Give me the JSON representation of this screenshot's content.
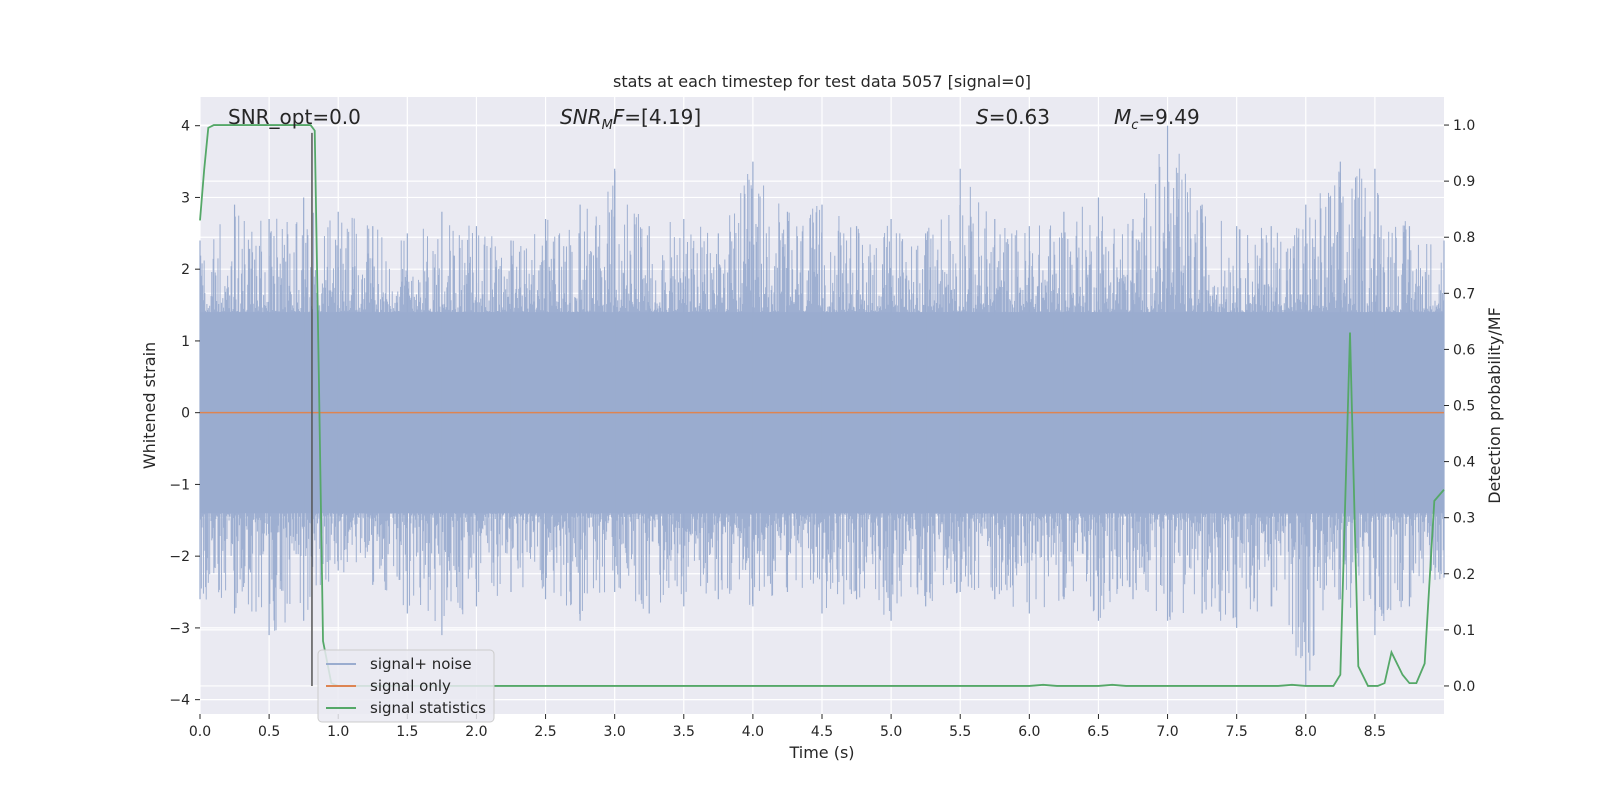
{
  "chart_data": {
    "type": "line",
    "title": "stats at each timestep for test data 5057 [signal=0]",
    "xlabel": "Time (s)",
    "ylabel_left": "Whitened strain",
    "ylabel_right": "Detection probability/MF",
    "xlim": [
      0.0,
      9.0
    ],
    "ylim_left": [
      -4.2,
      4.4
    ],
    "ylim_right": [
      -0.05,
      1.05
    ],
    "xticks": [
      "0.0",
      "0.5",
      "1.0",
      "1.5",
      "2.0",
      "2.5",
      "3.0",
      "3.5",
      "4.0",
      "4.5",
      "5.0",
      "5.5",
      "6.0",
      "6.5",
      "7.0",
      "7.5",
      "8.0",
      "8.5"
    ],
    "xtick_values": [
      0.0,
      0.5,
      1.0,
      1.5,
      2.0,
      2.5,
      3.0,
      3.5,
      4.0,
      4.5,
      5.0,
      5.5,
      6.0,
      6.5,
      7.0,
      7.5,
      8.0,
      8.5
    ],
    "yticks_left": [
      "4",
      "3",
      "2",
      "1",
      "0",
      "−1",
      "−2",
      "−3",
      "−4"
    ],
    "ytick_values_left": [
      4,
      3,
      2,
      1,
      0,
      -1,
      -2,
      -3,
      -4
    ],
    "yticks_right": [
      "1.0",
      "0.9",
      "0.8",
      "0.7",
      "0.6",
      "0.5",
      "0.4",
      "0.3",
      "0.2",
      "0.1",
      "0.0"
    ],
    "ytick_values_right": [
      1.0,
      0.9,
      0.8,
      0.7,
      0.6,
      0.5,
      0.4,
      0.3,
      0.2,
      0.1,
      0.0
    ],
    "grid": true,
    "legend_placement": "lower-left",
    "annotations": {
      "snr_opt": "SNR_opt=0.0",
      "snr_mf_base": "SNR",
      "snr_mf_sub": "M",
      "snr_mf_rest": "F=[4.19]",
      "s_var": "S",
      "s_val": "=0.63",
      "mc_var": "M",
      "mc_sub": "c",
      "mc_val": "=9.49"
    },
    "vline_x": 0.81,
    "series": [
      {
        "name": "signal+ noise",
        "color": "#9aaccf",
        "axis": "left",
        "envelope_x": [
          0.0,
          0.25,
          0.5,
          0.75,
          1.0,
          1.25,
          1.5,
          1.75,
          2.0,
          2.25,
          2.5,
          2.75,
          3.0,
          3.25,
          3.5,
          3.75,
          4.0,
          4.25,
          4.5,
          4.75,
          5.0,
          5.25,
          5.5,
          5.75,
          6.0,
          6.25,
          6.5,
          6.75,
          7.0,
          7.25,
          7.5,
          7.75,
          8.0,
          8.25,
          8.5,
          8.75,
          9.0
        ],
        "envelope_upper": [
          2.4,
          2.9,
          2.7,
          3.0,
          2.8,
          2.6,
          2.5,
          2.8,
          2.6,
          2.4,
          2.7,
          2.9,
          3.4,
          2.6,
          2.7,
          2.5,
          3.5,
          2.8,
          2.9,
          2.6,
          2.7,
          2.5,
          3.4,
          2.7,
          2.6,
          2.8,
          3.0,
          2.7,
          4.0,
          2.9,
          2.6,
          2.6,
          2.9,
          3.5,
          3.4,
          2.6,
          2.4
        ],
        "envelope_lower": [
          -2.6,
          -2.8,
          -3.1,
          -2.9,
          -2.2,
          -2.4,
          -2.8,
          -3.1,
          -2.7,
          -2.5,
          -2.6,
          -2.9,
          -2.5,
          -2.8,
          -2.7,
          -2.6,
          -2.7,
          -2.5,
          -2.8,
          -2.6,
          -2.9,
          -2.7,
          -2.5,
          -2.6,
          -2.8,
          -2.6,
          -2.9,
          -2.6,
          -2.9,
          -2.8,
          -3.0,
          -2.7,
          -3.8,
          -2.6,
          -3.1,
          -2.7,
          -2.3
        ],
        "core_band": [
          -1.4,
          1.4
        ]
      },
      {
        "name": "signal only",
        "color": "#dd8452",
        "axis": "left",
        "x": [
          0.0,
          9.0
        ],
        "y": [
          0.0,
          0.0
        ]
      },
      {
        "name": "signal statistics",
        "color": "#55a868",
        "axis": "right",
        "x": [
          0.0,
          0.03,
          0.06,
          0.1,
          0.2,
          0.3,
          0.4,
          0.5,
          0.6,
          0.7,
          0.75,
          0.8,
          0.83,
          0.86,
          0.89,
          0.95,
          1.0,
          1.5,
          2.0,
          2.5,
          3.0,
          3.5,
          4.0,
          4.5,
          5.0,
          5.5,
          6.0,
          6.1,
          6.2,
          6.5,
          6.6,
          6.7,
          7.0,
          7.5,
          7.8,
          7.9,
          8.0,
          8.1,
          8.2,
          8.25,
          8.32,
          8.38,
          8.45,
          8.52,
          8.57,
          8.62,
          8.7,
          8.75,
          8.8,
          8.86,
          8.93,
          9.0
        ],
        "y": [
          0.83,
          0.92,
          0.995,
          1.0,
          1.0,
          1.0,
          1.0,
          1.0,
          1.0,
          1.0,
          1.0,
          1.0,
          0.99,
          0.55,
          0.08,
          0.005,
          0.0,
          0.0,
          0.0,
          0.0,
          0.0,
          0.0,
          0.0,
          0.0,
          0.0,
          0.0,
          0.0,
          0.002,
          0.0,
          0.0,
          0.002,
          0.0,
          0.0,
          0.0,
          0.0,
          0.002,
          0.0,
          0.0,
          0.0,
          0.02,
          0.63,
          0.035,
          0.0,
          0.0,
          0.005,
          0.06,
          0.02,
          0.005,
          0.005,
          0.04,
          0.33,
          0.35
        ]
      }
    ]
  },
  "colors": {
    "plot_bg": "#eaeaf2",
    "grid": "#ffffff",
    "text": "#262626",
    "vline": "#555555"
  }
}
